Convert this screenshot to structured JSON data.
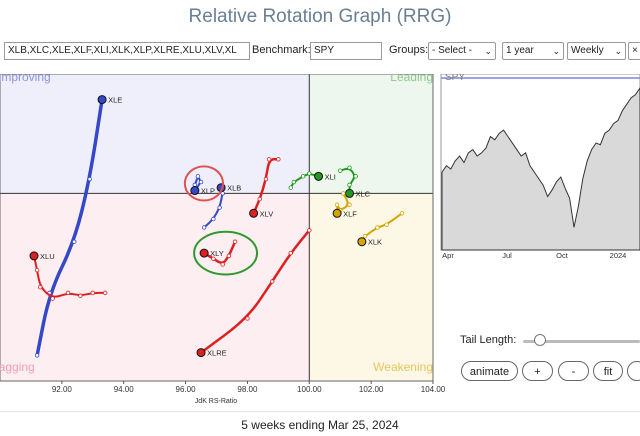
{
  "page": {
    "title": "Relative Rotation Graph (RRG)",
    "footer": "5 weeks ending Mar 25, 2024"
  },
  "toolbar": {
    "symbols_value": "XLB,XLC,XLE,XLF,XLI,XLK,XLP,XLRE,XLU,XLV,XL",
    "benchmark_label": "Benchmark:",
    "benchmark_value": "SPY",
    "groups_label": "Groups:",
    "groups_value": "- Select -",
    "period_value": "1 year",
    "interval_value": "Weekly",
    "extra_button": "×"
  },
  "controls": {
    "tail_length_label": "Tail Length:",
    "tail_length_level_fraction": 0.11,
    "animate": "animate",
    "plus": "+",
    "minus": "-",
    "fit": "fit"
  },
  "colors": {
    "improving_bg": "#eeeffa",
    "leading_bg": "#edf7ed",
    "weakening_bg": "#fdf8e6",
    "lagging_bg": "#fdeef1",
    "quadrant_improving": "#8b93dc",
    "quadrant_leading": "#93c593",
    "quadrant_weakening": "#e6c45c",
    "quadrant_lagging": "#eea1b2"
  },
  "chart_data": [
    {
      "type": "scatter",
      "xlabel": "JdK RS-Ratio",
      "ylabel": "",
      "xlim": [
        90,
        104
      ],
      "ylim": [
        93.4,
        104.2
      ],
      "x_ticks": [
        "92.00",
        "94.00",
        "96.00",
        "98.00",
        "100.00",
        "102.00",
        "104.00"
      ],
      "quadrants": {
        "improving": "Improving",
        "leading": "Leading",
        "weakening": "Weakening",
        "lagging": "Lagging"
      },
      "highlighted": [
        "XLP",
        "XLY"
      ],
      "series": [
        {
          "name": "XLE",
          "color": "#3548c8",
          "points": [
            [
              91.2,
              94.3
            ],
            [
              91.6,
              96.5
            ],
            [
              92.4,
              98.3
            ],
            [
              92.9,
              100.5
            ],
            [
              93.3,
              103.3
            ]
          ]
        },
        {
          "name": "XLP",
          "color": "#3548c8",
          "points": [
            [
              96.3,
              100.3
            ],
            [
              96.4,
              100.6
            ],
            [
              96.5,
              100.4
            ],
            [
              96.3,
              100.1
            ]
          ]
        },
        {
          "name": "XLB",
          "color": "#3548c8",
          "points": [
            [
              96.6,
              98.8
            ],
            [
              96.9,
              99.1
            ],
            [
              97.1,
              99.5
            ],
            [
              97.2,
              100.0
            ],
            [
              97.15,
              100.2
            ]
          ]
        },
        {
          "name": "XLI",
          "color": "#1f9a1f",
          "points": [
            [
              99.4,
              100.2
            ],
            [
              99.5,
              100.4
            ],
            [
              99.8,
              100.6
            ],
            [
              100.0,
              100.7
            ],
            [
              100.3,
              100.6
            ]
          ]
        },
        {
          "name": "XLC",
          "color": "#1f9a1f",
          "points": [
            [
              101.0,
              100.8
            ],
            [
              101.3,
              100.9
            ],
            [
              101.5,
              100.6
            ],
            [
              101.3,
              100.3
            ],
            [
              101.3,
              100.0
            ]
          ]
        },
        {
          "name": "XLF",
          "color": "#d4a400",
          "points": [
            [
              101.1,
              100.0
            ],
            [
              101.3,
              99.6
            ],
            [
              101.0,
              99.4
            ],
            [
              100.9,
              99.6
            ],
            [
              100.9,
              99.3
            ]
          ]
        },
        {
          "name": "XLK",
          "color": "#d4a400",
          "points": [
            [
              103.0,
              99.3
            ],
            [
              102.5,
              98.9
            ],
            [
              102.2,
              98.8
            ],
            [
              101.8,
              98.5
            ],
            [
              101.7,
              98.3
            ]
          ]
        },
        {
          "name": "XLV",
          "color": "#dd2020",
          "points": [
            [
              99.0,
              101.2
            ],
            [
              98.7,
              101.2
            ],
            [
              98.6,
              100.5
            ],
            [
              98.4,
              99.8
            ],
            [
              98.2,
              99.3
            ]
          ]
        },
        {
          "name": "XLU",
          "color": "#dd2020",
          "points": [
            [
              93.4,
              96.5
            ],
            [
              93.0,
              96.5
            ],
            [
              92.6,
              96.4
            ],
            [
              92.2,
              96.5
            ],
            [
              91.7,
              96.3
            ],
            [
              91.3,
              96.7
            ],
            [
              91.2,
              97.3
            ],
            [
              91.1,
              97.8
            ]
          ]
        },
        {
          "name": "XLY",
          "color": "#dd2020",
          "points": [
            [
              97.6,
              98.3
            ],
            [
              97.4,
              97.8
            ],
            [
              97.2,
              97.5
            ],
            [
              96.9,
              97.7
            ],
            [
              96.6,
              97.9
            ]
          ]
        },
        {
          "name": "XLRE",
          "color": "#dd2020",
          "points": [
            [
              100.0,
              98.7
            ],
            [
              99.4,
              97.9
            ],
            [
              98.8,
              96.9
            ],
            [
              98.0,
              95.6
            ],
            [
              96.5,
              94.4
            ]
          ]
        }
      ]
    },
    {
      "type": "area",
      "title": "SPY",
      "x_ticks": [
        "Apr",
        "Jul",
        "Oct",
        "2024"
      ],
      "ylim": [
        0,
        1
      ],
      "values": [
        0.48,
        0.52,
        0.5,
        0.55,
        0.58,
        0.54,
        0.6,
        0.62,
        0.58,
        0.6,
        0.63,
        0.7,
        0.68,
        0.72,
        0.74,
        0.7,
        0.66,
        0.62,
        0.58,
        0.6,
        0.52,
        0.48,
        0.44,
        0.4,
        0.33,
        0.37,
        0.42,
        0.45,
        0.38,
        0.32,
        0.14,
        0.27,
        0.44,
        0.55,
        0.62,
        0.66,
        0.65,
        0.72,
        0.74,
        0.78,
        0.8,
        0.86,
        0.9,
        0.94,
        0.96,
        1.0
      ]
    }
  ]
}
